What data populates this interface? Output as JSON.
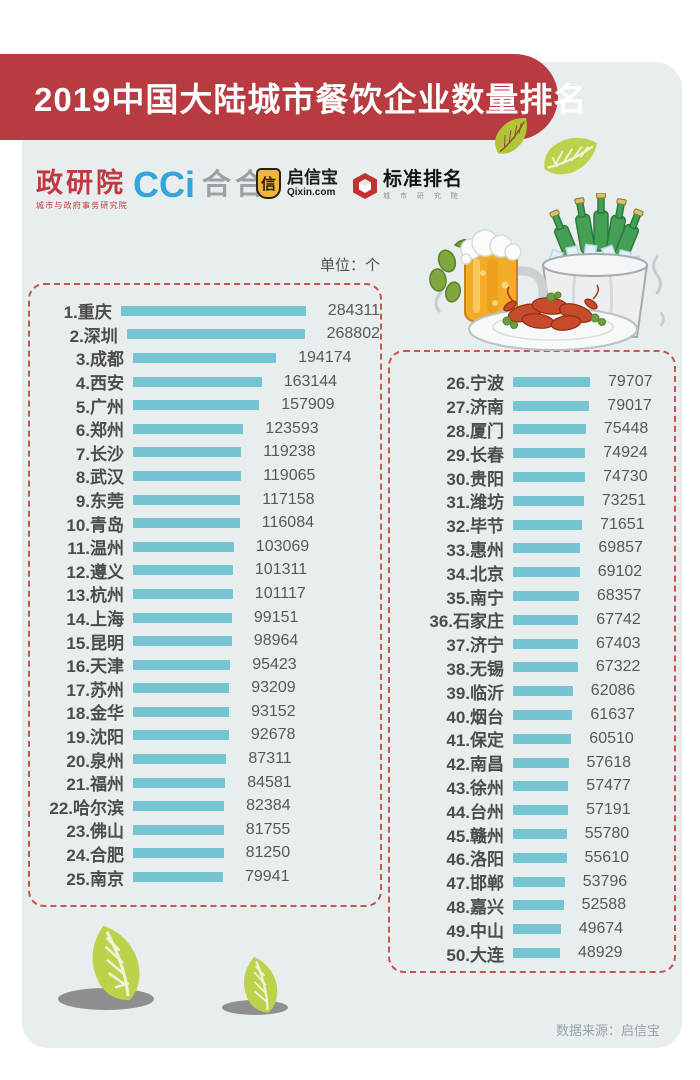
{
  "header": {
    "title": "2019中国大陆城市餐饮企业数量排名",
    "banner_color": "#b73b41"
  },
  "logos": {
    "zhengyanyuan": {
      "name": "政研院",
      "sub": "城市与政府事务研究院"
    },
    "cci": {
      "name": "CCi",
      "suffix": "合合"
    },
    "qixinbao": {
      "icon_char": "信",
      "name": "启信宝",
      "sub": "Qixin.com"
    },
    "biaozhun": {
      "name": "标准排名",
      "sub": "城 市 研 究 院"
    }
  },
  "unit_label": "单位：个",
  "chart_data": {
    "type": "bar",
    "orientation": "horizontal",
    "title": "2019中国大陆城市餐饮企业数量排名",
    "unit": "个",
    "bar_color": "#74c5d1",
    "legend": "none",
    "grid": false,
    "columns": [
      {
        "id": "left",
        "scale": {
          "vmin": 79941,
          "wmin": 90,
          "vmax": 284311,
          "wmax": 185
        },
        "items": [
          {
            "rank": 1,
            "city": "重庆",
            "value": 284311
          },
          {
            "rank": 2,
            "city": "深圳",
            "value": 268802
          },
          {
            "rank": 3,
            "city": "成都",
            "value": 194174
          },
          {
            "rank": 4,
            "city": "西安",
            "value": 163144
          },
          {
            "rank": 5,
            "city": "广州",
            "value": 157909
          },
          {
            "rank": 6,
            "city": "郑州",
            "value": 123593
          },
          {
            "rank": 7,
            "city": "长沙",
            "value": 119238
          },
          {
            "rank": 8,
            "city": "武汉",
            "value": 119065
          },
          {
            "rank": 9,
            "city": "东莞",
            "value": 117158
          },
          {
            "rank": 10,
            "city": "青岛",
            "value": 116084
          },
          {
            "rank": 11,
            "city": "温州",
            "value": 103069
          },
          {
            "rank": 12,
            "city": "遵义",
            "value": 101311
          },
          {
            "rank": 13,
            "city": "杭州",
            "value": 101117
          },
          {
            "rank": 14,
            "city": "上海",
            "value": 99151
          },
          {
            "rank": 15,
            "city": "昆明",
            "value": 98964
          },
          {
            "rank": 16,
            "city": "天津",
            "value": 95423
          },
          {
            "rank": 17,
            "city": "苏州",
            "value": 93209
          },
          {
            "rank": 18,
            "city": "金华",
            "value": 93152
          },
          {
            "rank": 19,
            "city": "沈阳",
            "value": 92678
          },
          {
            "rank": 20,
            "city": "泉州",
            "value": 87311
          },
          {
            "rank": 21,
            "city": "福州",
            "value": 84581
          },
          {
            "rank": 22,
            "city": "哈尔滨",
            "value": 82384
          },
          {
            "rank": 23,
            "city": "佛山",
            "value": 81755
          },
          {
            "rank": 24,
            "city": "合肥",
            "value": 81250
          },
          {
            "rank": 25,
            "city": "南京",
            "value": 79941
          }
        ]
      },
      {
        "id": "right",
        "scale": {
          "vmin": 48929,
          "wmin": 47,
          "vmax": 79707,
          "wmax": 77
        },
        "items": [
          {
            "rank": 26,
            "city": "宁波",
            "value": 79707
          },
          {
            "rank": 27,
            "city": "济南",
            "value": 79017
          },
          {
            "rank": 28,
            "city": "厦门",
            "value": 75448
          },
          {
            "rank": 29,
            "city": "长春",
            "value": 74924
          },
          {
            "rank": 30,
            "city": "贵阳",
            "value": 74730
          },
          {
            "rank": 31,
            "city": "潍坊",
            "value": 73251
          },
          {
            "rank": 32,
            "city": "毕节",
            "value": 71651
          },
          {
            "rank": 33,
            "city": "惠州",
            "value": 69857
          },
          {
            "rank": 34,
            "city": "北京",
            "value": 69102
          },
          {
            "rank": 35,
            "city": "南宁",
            "value": 68357
          },
          {
            "rank": 36,
            "city": "石家庄",
            "value": 67742
          },
          {
            "rank": 37,
            "city": "济宁",
            "value": 67403
          },
          {
            "rank": 38,
            "city": "无锡",
            "value": 67322
          },
          {
            "rank": 39,
            "city": "临沂",
            "value": 62086
          },
          {
            "rank": 40,
            "city": "烟台",
            "value": 61637
          },
          {
            "rank": 41,
            "city": "保定",
            "value": 60510
          },
          {
            "rank": 42,
            "city": "南昌",
            "value": 57618
          },
          {
            "rank": 43,
            "city": "徐州",
            "value": 57477
          },
          {
            "rank": 44,
            "city": "台州",
            "value": 57191
          },
          {
            "rank": 45,
            "city": "赣州",
            "value": 55780
          },
          {
            "rank": 46,
            "city": "洛阳",
            "value": 55610
          },
          {
            "rank": 47,
            "city": "邯郸",
            "value": 53796
          },
          {
            "rank": 48,
            "city": "嘉兴",
            "value": 52588
          },
          {
            "rank": 49,
            "city": "中山",
            "value": 49674
          },
          {
            "rank": 50,
            "city": "大连",
            "value": 48929
          }
        ]
      }
    ]
  },
  "footer": {
    "source_label": "数据来源：启信宝"
  }
}
